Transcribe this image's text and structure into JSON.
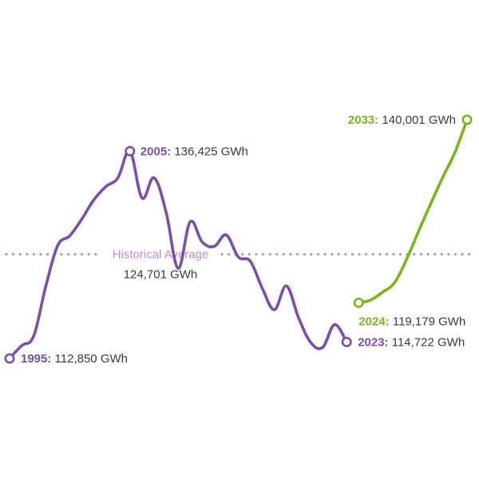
{
  "chart_data": {
    "type": "line",
    "unit": "GWh",
    "colors": {
      "historical": "#7b4fa6",
      "forecast": "#7ab51d",
      "average": "#b690cf",
      "text": "#3a3a3a"
    },
    "series": [
      {
        "id": "historical",
        "x": [
          1995,
          1996,
          1997,
          1998,
          1999,
          2000,
          2001,
          2002,
          2003,
          2004,
          2005,
          2006,
          2007,
          2008,
          2009,
          2010,
          2011,
          2012,
          2013,
          2014,
          2015,
          2016,
          2017,
          2018,
          2019,
          2020,
          2021,
          2022,
          2023
        ],
        "values": [
          112850,
          114300,
          115400,
          121000,
          125700,
          126800,
          128700,
          130900,
          132400,
          133400,
          136425,
          131100,
          133400,
          129500,
          123100,
          128400,
          126100,
          125600,
          126900,
          124400,
          123900,
          120800,
          118400,
          121100,
          117500,
          114700,
          114100,
          116700,
          114722
        ]
      },
      {
        "id": "forecast",
        "x": [
          2024,
          2025,
          2026,
          2027,
          2028,
          2029,
          2030,
          2031,
          2032,
          2033
        ],
        "values": [
          119179,
          119500,
          120400,
          121500,
          124200,
          127400,
          130500,
          133500,
          136300,
          140001
        ]
      }
    ],
    "average": {
      "value": 124701,
      "label": "Historical Average",
      "value_text": "124,701 GWh"
    },
    "annotations": [
      {
        "year": "1995:",
        "text": " 112,850 GWh",
        "color": "historical",
        "x": 1995,
        "value": 112850
      },
      {
        "year": "2005:",
        "text": " 136,425 GWh",
        "color": "historical",
        "x": 2005,
        "value": 136425
      },
      {
        "year": "2023:",
        "text": " 114,722 GWh",
        "color": "historical",
        "x": 2023,
        "value": 114722
      },
      {
        "year": "2024:",
        "text": " 119,179 GWh",
        "color": "forecast",
        "x": 2024,
        "value": 119179
      },
      {
        "year": "2033:",
        "text": " 140,001 GWh",
        "color": "forecast",
        "x": 2033,
        "value": 140001
      }
    ]
  }
}
